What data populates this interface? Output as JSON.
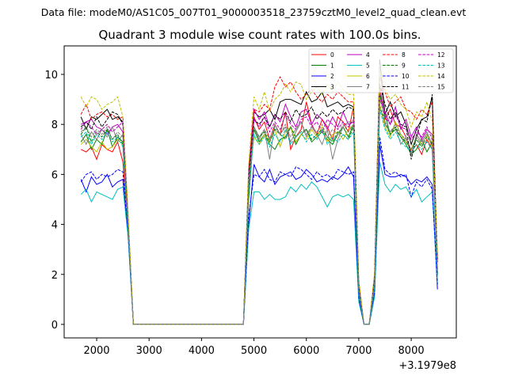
{
  "chart_data": {
    "type": "line",
    "header": "Data file: modeM0/AS1C05_007T01_9000003518_23759cztM0_level2_quad_clean.evt",
    "title": "Quadrant 3 module wise count rates with 100.0s bins.",
    "xlabel": "",
    "ylabel": "",
    "x_offset_label": "+3.1979e8",
    "xlim": [
      1380,
      8860
    ],
    "ylim": [
      -0.54,
      11.14
    ],
    "xticks": [
      2000,
      3000,
      4000,
      5000,
      6000,
      7000,
      8000
    ],
    "yticks": [
      0,
      2,
      4,
      6,
      8,
      10
    ],
    "grid": false,
    "legend_placement": "top-right",
    "x": [
      1700,
      1800,
      1900,
      2000,
      2100,
      2200,
      2300,
      2400,
      2500,
      2600,
      2700,
      2800,
      2900,
      3000,
      3100,
      3200,
      3300,
      3400,
      3500,
      3600,
      3700,
      3800,
      3900,
      4000,
      4100,
      4200,
      4300,
      4400,
      4500,
      4600,
      4700,
      4800,
      4900,
      5000,
      5100,
      5200,
      5300,
      5400,
      5500,
      5600,
      5700,
      5800,
      5900,
      6000,
      6100,
      6200,
      6300,
      6400,
      6500,
      6600,
      6700,
      6800,
      6900,
      7000,
      7100,
      7200,
      7300,
      7400,
      7500,
      7600,
      7700,
      7800,
      7900,
      8000,
      8100,
      8200,
      8300,
      8400,
      8500
    ],
    "series": [
      {
        "name": "0",
        "color": "#ff0000",
        "dash": false,
        "values": [
          7.0,
          6.9,
          7.1,
          6.6,
          7.2,
          7.0,
          6.9,
          7.3,
          6.5,
          4.0,
          0,
          0,
          0,
          0,
          0,
          0,
          0,
          0,
          0,
          0,
          0,
          0,
          0,
          0,
          0,
          0,
          0,
          0,
          0,
          0,
          0,
          0,
          5.5,
          8.3,
          7.8,
          8.1,
          7.4,
          8.0,
          7.6,
          8.5,
          7.0,
          7.5,
          7.8,
          8.9,
          8.0,
          7.6,
          8.2,
          7.9,
          7.4,
          8.3,
          8.1,
          7.7,
          8.7,
          1.5,
          0,
          0,
          1.8,
          9.5,
          8.2,
          8.6,
          8.0,
          7.9,
          7.5,
          6.9,
          7.2,
          6.8,
          7.4,
          7.0,
          2.5
        ]
      },
      {
        "name": "1",
        "color": "#008000",
        "dash": false,
        "values": [
          7.3,
          7.6,
          7.0,
          7.4,
          7.2,
          7.8,
          7.1,
          7.5,
          7.3,
          3.8,
          0,
          0,
          0,
          0,
          0,
          0,
          0,
          0,
          0,
          0,
          0,
          0,
          0,
          0,
          0,
          0,
          0,
          0,
          0,
          0,
          0,
          0,
          5.0,
          7.8,
          7.3,
          7.6,
          7.2,
          7.0,
          7.4,
          7.5,
          7.9,
          7.2,
          7.6,
          7.8,
          7.3,
          7.5,
          7.7,
          7.4,
          7.2,
          7.6,
          7.9,
          7.5,
          8.0,
          1.3,
          0,
          0,
          1.5,
          9.2,
          8.4,
          7.6,
          7.8,
          7.5,
          7.2,
          6.8,
          7.0,
          7.4,
          6.9,
          7.3,
          2.0
        ]
      },
      {
        "name": "2",
        "color": "#0000ff",
        "dash": false,
        "values": [
          5.8,
          5.3,
          5.9,
          5.6,
          5.7,
          6.0,
          5.5,
          5.7,
          5.8,
          3.6,
          0,
          0,
          0,
          0,
          0,
          0,
          0,
          0,
          0,
          0,
          0,
          0,
          0,
          0,
          0,
          0,
          0,
          0,
          0,
          0,
          0,
          0,
          4.0,
          6.4,
          5.9,
          5.7,
          6.2,
          5.6,
          5.9,
          6.0,
          6.1,
          5.8,
          5.9,
          6.2,
          6.0,
          5.7,
          5.8,
          5.7,
          5.9,
          5.8,
          6.0,
          6.3,
          5.9,
          1.0,
          0,
          0,
          1.2,
          7.2,
          6.0,
          5.9,
          5.9,
          6.0,
          5.9,
          5.6,
          5.8,
          5.7,
          5.9,
          5.6,
          1.4
        ]
      },
      {
        "name": "3",
        "color": "#000000",
        "dash": false,
        "values": [
          8.3,
          7.8,
          8.3,
          8.2,
          8.4,
          8.6,
          8.2,
          8.3,
          8.1,
          4.2,
          0,
          0,
          0,
          0,
          0,
          0,
          0,
          0,
          0,
          0,
          0,
          0,
          0,
          0,
          0,
          0,
          0,
          0,
          0,
          0,
          0,
          0,
          6.0,
          8.5,
          8.3,
          8.4,
          8.6,
          8.2,
          8.9,
          9.0,
          9.0,
          8.9,
          8.8,
          9.3,
          8.9,
          9.0,
          9.3,
          8.7,
          8.8,
          8.9,
          8.7,
          8.8,
          8.7,
          1.6,
          0,
          0,
          1.9,
          10.6,
          8.4,
          8.9,
          8.3,
          8.5,
          8.0,
          7.2,
          7.8,
          8.2,
          8.3,
          9.1,
          2.2
        ]
      },
      {
        "name": "4",
        "color": "#bf00bf",
        "dash": false,
        "values": [
          8.0,
          8.1,
          8.2,
          7.9,
          7.8,
          7.6,
          7.9,
          8.0,
          7.7,
          4.0,
          0,
          0,
          0,
          0,
          0,
          0,
          0,
          0,
          0,
          0,
          0,
          0,
          0,
          0,
          0,
          0,
          0,
          0,
          0,
          0,
          0,
          0,
          5.8,
          8.6,
          8.2,
          8.5,
          7.9,
          8.4,
          8.1,
          8.8,
          8.3,
          7.9,
          8.5,
          8.6,
          8.0,
          8.4,
          8.2,
          7.8,
          8.3,
          7.9,
          8.5,
          8.0,
          8.1,
          1.4,
          0,
          0,
          1.6,
          9.0,
          8.5,
          8.0,
          8.7,
          7.8,
          8.2,
          7.5,
          7.9,
          7.4,
          7.8,
          7.6,
          2.0
        ]
      },
      {
        "name": "5",
        "color": "#00bfbf",
        "dash": false,
        "values": [
          5.2,
          5.4,
          4.9,
          5.3,
          5.2,
          5.1,
          5.0,
          5.4,
          5.5,
          3.5,
          0,
          0,
          0,
          0,
          0,
          0,
          0,
          0,
          0,
          0,
          0,
          0,
          0,
          0,
          0,
          0,
          0,
          0,
          0,
          0,
          0,
          0,
          3.8,
          5.3,
          5.3,
          5.0,
          5.2,
          5.0,
          5.0,
          5.1,
          5.5,
          5.3,
          5.6,
          5.4,
          5.7,
          5.5,
          5.1,
          4.7,
          5.1,
          5.2,
          5.1,
          5.2,
          5.0,
          0.9,
          0,
          0,
          1.1,
          6.5,
          5.6,
          5.3,
          5.6,
          5.4,
          5.5,
          5.1,
          5.4,
          4.9,
          5.1,
          5.3,
          1.6
        ]
      },
      {
        "name": "6",
        "color": "#bfbf00",
        "dash": false,
        "values": [
          7.2,
          7.4,
          7.1,
          6.9,
          7.3,
          7.0,
          7.1,
          7.4,
          7.2,
          4.1,
          0,
          0,
          0,
          0,
          0,
          0,
          0,
          0,
          0,
          0,
          0,
          0,
          0,
          0,
          0,
          0,
          0,
          0,
          0,
          0,
          0,
          0,
          5.6,
          7.5,
          7.2,
          7.6,
          7.3,
          7.8,
          7.1,
          7.7,
          7.9,
          7.3,
          7.6,
          7.4,
          7.8,
          7.5,
          7.9,
          7.3,
          7.6,
          7.7,
          7.4,
          7.8,
          8.0,
          1.4,
          0,
          0,
          1.7,
          8.8,
          7.9,
          7.5,
          8.1,
          7.6,
          7.3,
          7.0,
          7.5,
          7.2,
          7.6,
          7.1,
          2.3
        ]
      },
      {
        "name": "7",
        "color": "#808080",
        "dash": false,
        "values": [
          7.6,
          7.2,
          7.7,
          7.4,
          7.8,
          7.5,
          7.9,
          7.3,
          7.6,
          4.0,
          0,
          0,
          0,
          0,
          0,
          0,
          0,
          0,
          0,
          0,
          0,
          0,
          0,
          0,
          0,
          0,
          0,
          0,
          0,
          0,
          0,
          0,
          5.7,
          7.9,
          7.4,
          7.8,
          6.6,
          8.0,
          7.6,
          7.9,
          7.3,
          7.7,
          8.1,
          7.5,
          7.9,
          7.6,
          7.2,
          7.8,
          6.6,
          7.4,
          7.9,
          8.1,
          8.1,
          1.5,
          0,
          0,
          1.7,
          10.4,
          8.0,
          7.7,
          7.9,
          7.2,
          7.5,
          6.8,
          7.6,
          7.3,
          7.7,
          7.2,
          2.1
        ]
      },
      {
        "name": "8",
        "color": "#ff0000",
        "dash": true,
        "values": [
          8.4,
          8.8,
          8.2,
          8.4,
          8.5,
          8.3,
          8.4,
          8.2,
          8.3,
          4.3,
          0,
          0,
          0,
          0,
          0,
          0,
          0,
          0,
          0,
          0,
          0,
          0,
          0,
          0,
          0,
          0,
          0,
          0,
          0,
          0,
          0,
          0,
          6.2,
          8.6,
          8.5,
          8.8,
          8.6,
          9.5,
          9.9,
          9.5,
          9.7,
          9.3,
          9.0,
          9.2,
          9.4,
          9.1,
          8.9,
          9.2,
          9.0,
          9.3,
          9.1,
          8.9,
          8.9,
          1.7,
          0,
          0,
          2.0,
          9.9,
          9.3,
          8.7,
          8.9,
          9.1,
          8.6,
          8.5,
          8.2,
          8.6,
          8.4,
          8.9,
          2.6
        ]
      },
      {
        "name": "9",
        "color": "#008000",
        "dash": true,
        "values": [
          7.6,
          7.9,
          7.3,
          7.7,
          7.5,
          7.8,
          7.4,
          7.6,
          7.2,
          3.9,
          0,
          0,
          0,
          0,
          0,
          0,
          0,
          0,
          0,
          0,
          0,
          0,
          0,
          0,
          0,
          0,
          0,
          0,
          0,
          0,
          0,
          0,
          5.4,
          7.9,
          7.5,
          7.7,
          7.3,
          7.8,
          7.6,
          7.4,
          7.9,
          7.5,
          7.7,
          7.8,
          7.4,
          7.6,
          7.8,
          7.5,
          7.3,
          7.7,
          7.6,
          7.4,
          7.9,
          1.3,
          0,
          0,
          1.6,
          8.7,
          8.1,
          7.6,
          7.9,
          7.5,
          7.3,
          7.0,
          7.4,
          7.1,
          7.5,
          7.2,
          2.0
        ]
      },
      {
        "name": "10",
        "color": "#0000ff",
        "dash": true,
        "values": [
          5.7,
          6.0,
          6.1,
          5.8,
          6.0,
          5.9,
          6.0,
          6.2,
          6.1,
          3.7,
          0,
          0,
          0,
          0,
          0,
          0,
          0,
          0,
          0,
          0,
          0,
          0,
          0,
          0,
          0,
          0,
          0,
          0,
          0,
          0,
          0,
          0,
          4.3,
          6.0,
          5.9,
          6.2,
          5.8,
          5.7,
          6.1,
          6.0,
          5.9,
          6.3,
          6.2,
          6.0,
          5.8,
          6.1,
          5.9,
          6.0,
          5.8,
          6.2,
          6.1,
          6.0,
          6.1,
          1.1,
          0,
          0,
          1.3,
          7.5,
          6.2,
          6.0,
          6.1,
          5.9,
          6.0,
          5.1,
          5.7,
          5.5,
          5.8,
          5.4,
          1.6
        ]
      },
      {
        "name": "11",
        "color": "#000000",
        "dash": true,
        "values": [
          7.9,
          8.1,
          7.8,
          8.3,
          7.9,
          8.2,
          8.5,
          8.4,
          8.0,
          4.1,
          0,
          0,
          0,
          0,
          0,
          0,
          0,
          0,
          0,
          0,
          0,
          0,
          0,
          0,
          0,
          0,
          0,
          0,
          0,
          0,
          0,
          0,
          5.9,
          8.2,
          8.0,
          8.3,
          7.9,
          8.4,
          8.2,
          8.5,
          8.1,
          8.6,
          8.3,
          8.4,
          8.7,
          8.2,
          8.5,
          8.3,
          8.6,
          8.4,
          8.5,
          8.7,
          8.6,
          1.5,
          0,
          0,
          1.8,
          9.6,
          8.8,
          8.2,
          8.5,
          8.0,
          7.9,
          6.6,
          7.5,
          8.2,
          8.1,
          9.2,
          2.5
        ]
      },
      {
        "name": "12",
        "color": "#bf00bf",
        "dash": true,
        "values": [
          7.8,
          8.1,
          7.9,
          7.6,
          7.8,
          8.0,
          7.7,
          7.9,
          8.1,
          4.0,
          0,
          0,
          0,
          0,
          0,
          0,
          0,
          0,
          0,
          0,
          0,
          0,
          0,
          0,
          0,
          0,
          0,
          0,
          0,
          0,
          0,
          0,
          5.7,
          8.2,
          7.9,
          8.3,
          7.7,
          8.1,
          7.8,
          8.4,
          8.0,
          7.8,
          8.2,
          8.3,
          7.9,
          8.1,
          7.7,
          8.2,
          8.0,
          7.8,
          8.1,
          7.9,
          8.2,
          1.4,
          0,
          0,
          1.7,
          9.4,
          8.3,
          8.0,
          8.4,
          7.9,
          7.8,
          7.4,
          7.7,
          7.5,
          7.9,
          7.4,
          2.1
        ]
      },
      {
        "name": "13",
        "color": "#00bfbf",
        "dash": true,
        "values": [
          7.5,
          7.7,
          7.2,
          7.6,
          7.4,
          7.7,
          7.3,
          7.5,
          7.1,
          3.9,
          0,
          0,
          0,
          0,
          0,
          0,
          0,
          0,
          0,
          0,
          0,
          0,
          0,
          0,
          0,
          0,
          0,
          0,
          0,
          0,
          0,
          0,
          5.3,
          7.6,
          7.2,
          7.5,
          7.1,
          7.6,
          7.3,
          7.8,
          7.2,
          7.5,
          7.7,
          7.3,
          7.6,
          7.4,
          7.8,
          7.2,
          7.5,
          7.3,
          7.6,
          7.4,
          7.7,
          1.3,
          0,
          0,
          1.5,
          8.6,
          7.8,
          7.4,
          7.7,
          7.3,
          7.1,
          6.9,
          7.2,
          7.0,
          7.3,
          7.0,
          1.9
        ]
      },
      {
        "name": "14",
        "color": "#bfbf00",
        "dash": true,
        "values": [
          9.1,
          8.7,
          9.1,
          9.0,
          8.6,
          8.8,
          8.9,
          9.1,
          8.3,
          4.5,
          0,
          0,
          0,
          0,
          0,
          0,
          0,
          0,
          0,
          0,
          0,
          0,
          0,
          0,
          0,
          0,
          0,
          0,
          0,
          0,
          0,
          0,
          6.4,
          9.1,
          8.6,
          9.3,
          8.5,
          9.0,
          9.2,
          9.6,
          9.3,
          9.7,
          9.6,
          9.0,
          9.3,
          9.5,
          9.2,
          9.6,
          9.3,
          9.7,
          9.4,
          9.2,
          9.2,
          1.8,
          0,
          0,
          2.1,
          10.2,
          9.4,
          9.0,
          9.2,
          8.8,
          8.6,
          7.9,
          8.5,
          8.3,
          8.9,
          8.1,
          2.9
        ]
      },
      {
        "name": "15",
        "color": "#808080",
        "dash": true,
        "values": [
          7.7,
          7.9,
          7.5,
          7.8,
          7.6,
          7.9,
          7.4,
          7.7,
          7.5,
          4.0,
          0,
          0,
          0,
          0,
          0,
          0,
          0,
          0,
          0,
          0,
          0,
          0,
          0,
          0,
          0,
          0,
          0,
          0,
          0,
          0,
          0,
          0,
          5.6,
          7.9,
          7.5,
          7.8,
          7.4,
          7.9,
          7.6,
          8.0,
          7.5,
          7.8,
          8.1,
          7.6,
          7.9,
          7.7,
          8.0,
          7.5,
          7.8,
          7.6,
          8.0,
          7.7,
          8.0,
          1.4,
          0,
          0,
          1.7,
          9.1,
          8.1,
          7.7,
          8.0,
          7.6,
          7.4,
          7.0,
          7.5,
          7.2,
          7.6,
          7.1,
          2.2
        ]
      }
    ]
  }
}
